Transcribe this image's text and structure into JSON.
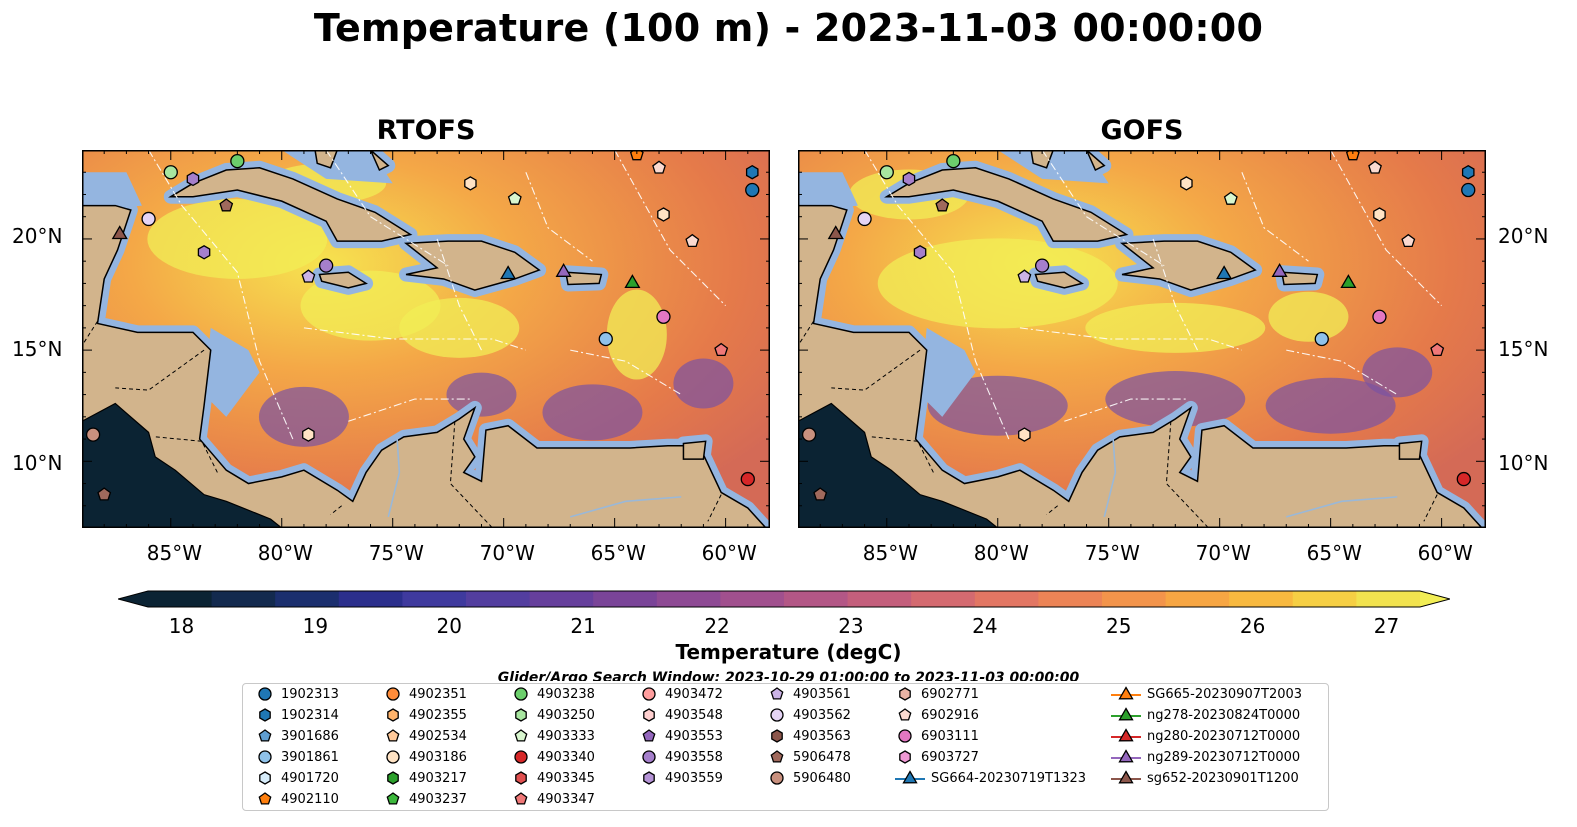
{
  "title": "Temperature (100 m) - 2023-11-03 00:00:00",
  "panels": [
    {
      "title": "RTOFS"
    },
    {
      "title": "GOFS"
    }
  ],
  "axes": {
    "longitude_ticks": [
      "85°W",
      "80°W",
      "75°W",
      "70°W",
      "65°W",
      "60°W"
    ],
    "latitude_ticks": [
      "20°N",
      "15°N",
      "10°N"
    ],
    "lon_range": [
      -89,
      -58
    ],
    "lat_range": [
      7,
      24
    ]
  },
  "colorbar": {
    "label": "Temperature (degC)",
    "ticks": [
      "18",
      "19",
      "20",
      "21",
      "22",
      "23",
      "24",
      "25",
      "26",
      "27"
    ],
    "range": [
      17.75,
      27.25
    ],
    "extend": "both"
  },
  "search_window": "Glider/Argo Search Window: 2023-10-29 01:00:00 to 2023-11-03 00:00:00",
  "legend": {
    "columns": [
      [
        {
          "label": "1902313",
          "marker": "circle",
          "color": "#1f77b4"
        },
        {
          "label": "1902314",
          "marker": "hexagon",
          "color": "#1f77b4"
        },
        {
          "label": "3901686",
          "marker": "pentagon",
          "color": "#5f9ed1"
        },
        {
          "label": "3901861",
          "marker": "circle",
          "color": "#8fc2ea"
        },
        {
          "label": "4901720",
          "marker": "hexagon",
          "color": "#d6ecfa"
        },
        {
          "label": "4902110",
          "marker": "pentagon",
          "color": "#ff7f0e"
        }
      ],
      [
        {
          "label": "4902351",
          "marker": "circle",
          "color": "#ff8c3a"
        },
        {
          "label": "4902355",
          "marker": "hexagon",
          "color": "#ffb36b"
        },
        {
          "label": "4902534",
          "marker": "pentagon",
          "color": "#ffc99a"
        },
        {
          "label": "4903186",
          "marker": "circle",
          "color": "#ffe3c4"
        },
        {
          "label": "4903217",
          "marker": "hexagon",
          "color": "#2ca02c"
        },
        {
          "label": "4903237",
          "marker": "pentagon",
          "color": "#3cb83c"
        }
      ],
      [
        {
          "label": "4903238",
          "marker": "circle",
          "color": "#6ccf6c"
        },
        {
          "label": "4903250",
          "marker": "hexagon",
          "color": "#a8e6a0"
        },
        {
          "label": "4903333",
          "marker": "pentagon",
          "color": "#d9f7cf"
        },
        {
          "label": "4903340",
          "marker": "circle",
          "color": "#d62728"
        },
        {
          "label": "4903345",
          "marker": "hexagon",
          "color": "#e04f4f"
        },
        {
          "label": "4903347",
          "marker": "pentagon",
          "color": "#f07878"
        }
      ],
      [
        {
          "label": "4903472",
          "marker": "circle",
          "color": "#ff9e9e"
        },
        {
          "label": "4903548",
          "marker": "hexagon",
          "color": "#ffd0d0"
        },
        {
          "label": "4903553",
          "marker": "pentagon",
          "color": "#9467bd"
        },
        {
          "label": "4903558",
          "marker": "circle",
          "color": "#a57fcb"
        },
        {
          "label": "4903559",
          "marker": "hexagon",
          "color": "#b593d6"
        }
      ],
      [
        {
          "label": "4903561",
          "marker": "pentagon",
          "color": "#cbb3e6"
        },
        {
          "label": "4903562",
          "marker": "circle",
          "color": "#e5d4f5"
        },
        {
          "label": "4903563",
          "marker": "hexagon",
          "color": "#8c564b"
        },
        {
          "label": "5906478",
          "marker": "pentagon",
          "color": "#a0695c"
        },
        {
          "label": "5906480",
          "marker": "circle",
          "color": "#c9907e"
        }
      ],
      [
        {
          "label": "6902771",
          "marker": "hexagon",
          "color": "#e8b3a5"
        },
        {
          "label": "6902916",
          "marker": "pentagon",
          "color": "#fbdad0"
        },
        {
          "label": "6903111",
          "marker": "circle",
          "color": "#e377c2"
        },
        {
          "label": "6903727",
          "marker": "hexagon",
          "color": "#ef99d4"
        },
        {
          "label": "SG664-20230719T1323",
          "marker": "triangle-line",
          "color": "#1f77b4"
        }
      ],
      [
        {
          "label": "SG665-20230907T2003",
          "marker": "triangle-line",
          "color": "#ff7f0e"
        },
        {
          "label": "ng278-20230824T0000",
          "marker": "triangle-line",
          "color": "#2ca02c"
        },
        {
          "label": "ng280-20230712T0000",
          "marker": "triangle-line",
          "color": "#d62728"
        },
        {
          "label": "ng289-20230712T0000",
          "marker": "triangle-line",
          "color": "#9467bd"
        },
        {
          "label": "sg652-20230901T1200",
          "marker": "triangle-line",
          "color": "#8c564b"
        }
      ]
    ]
  },
  "map_markers": [
    {
      "lon": -85.0,
      "lat": 23.0,
      "marker": "circle",
      "color": "#a8e6a0"
    },
    {
      "lon": -82.0,
      "lat": 23.5,
      "marker": "circle",
      "color": "#6ccf6c"
    },
    {
      "lon": -84.0,
      "lat": 22.7,
      "marker": "hexagon",
      "color": "#a57fcb"
    },
    {
      "lon": -82.5,
      "lat": 21.5,
      "marker": "pentagon",
      "color": "#a0695c"
    },
    {
      "lon": -86.0,
      "lat": 20.9,
      "marker": "circle",
      "color": "#e5d4f5"
    },
    {
      "lon": -87.3,
      "lat": 20.2,
      "marker": "triangle",
      "color": "#8c564b"
    },
    {
      "lon": -83.5,
      "lat": 19.4,
      "marker": "hexagon",
      "color": "#a57fcb"
    },
    {
      "lon": -78.8,
      "lat": 18.3,
      "marker": "pentagon",
      "color": "#cbb3e6"
    },
    {
      "lon": -78.0,
      "lat": 18.8,
      "marker": "circle",
      "color": "#a57fcb"
    },
    {
      "lon": -71.5,
      "lat": 22.5,
      "marker": "hexagon",
      "color": "#ffe3c4"
    },
    {
      "lon": -69.5,
      "lat": 21.8,
      "marker": "pentagon",
      "color": "#d9f7cf"
    },
    {
      "lon": -69.8,
      "lat": 18.4,
      "marker": "triangle",
      "color": "#1f77b4"
    },
    {
      "lon": -67.3,
      "lat": 18.5,
      "marker": "triangle",
      "color": "#9467bd"
    },
    {
      "lon": -64.2,
      "lat": 18.0,
      "marker": "triangle",
      "color": "#2ca02c"
    },
    {
      "lon": -64.0,
      "lat": 23.8,
      "marker": "pentagon",
      "color": "#ff7f0e"
    },
    {
      "lon": -63.0,
      "lat": 23.2,
      "marker": "pentagon",
      "color": "#fbdad0"
    },
    {
      "lon": -62.8,
      "lat": 21.1,
      "marker": "hexagon",
      "color": "#ffe3c4"
    },
    {
      "lon": -61.5,
      "lat": 19.9,
      "marker": "pentagon",
      "color": "#fbdad0"
    },
    {
      "lon": -58.8,
      "lat": 23.0,
      "marker": "hexagon",
      "color": "#1f77b4"
    },
    {
      "lon": -58.8,
      "lat": 22.2,
      "marker": "circle",
      "color": "#1f77b4"
    },
    {
      "lon": -65.4,
      "lat": 15.5,
      "marker": "circle",
      "color": "#8fc2ea"
    },
    {
      "lon": -62.8,
      "lat": 16.5,
      "marker": "circle",
      "color": "#e377c2"
    },
    {
      "lon": -60.2,
      "lat": 15.0,
      "marker": "pentagon",
      "color": "#f07878"
    },
    {
      "lon": -78.8,
      "lat": 11.2,
      "marker": "hexagon",
      "color": "#ffe3c4"
    },
    {
      "lon": -88.5,
      "lat": 11.2,
      "marker": "circle",
      "color": "#c9907e"
    },
    {
      "lon": -88.0,
      "lat": 8.5,
      "marker": "pentagon",
      "color": "#a0695c"
    },
    {
      "lon": -59.0,
      "lat": 9.2,
      "marker": "circle",
      "color": "#d62728"
    }
  ]
}
